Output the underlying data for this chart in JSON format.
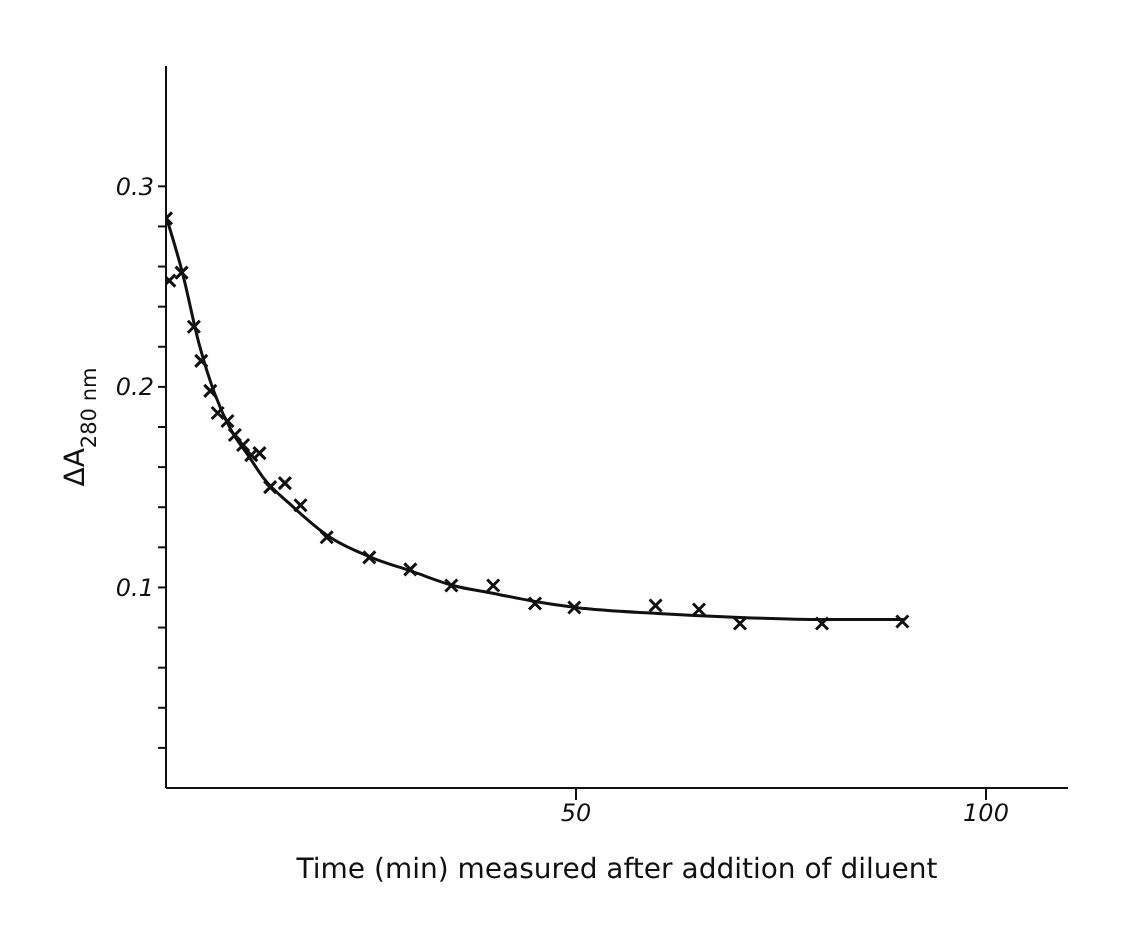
{
  "chart_data": {
    "type": "scatter",
    "xlabel": "Time (min) measured after addition of diluent",
    "ylabel": "ΔA$_{280 nm}$",
    "xlim": [
      0,
      110
    ],
    "ylim": [
      0,
      0.36
    ],
    "xticks": [
      50,
      100
    ],
    "yticks": [
      {
        "value": 0.02,
        "label": null
      },
      {
        "value": 0.04,
        "label": null
      },
      {
        "value": 0.06,
        "label": null
      },
      {
        "value": 0.08,
        "label": null
      },
      0.1,
      {
        "value": 0.12,
        "label": null
      },
      {
        "value": 0.14,
        "label": null
      },
      {
        "value": 0.16,
        "label": null
      },
      {
        "value": 0.18,
        "label": null
      },
      0.2,
      {
        "value": 0.22,
        "label": null
      },
      {
        "value": 0.24,
        "label": null
      },
      {
        "value": 0.26,
        "label": null
      },
      {
        "value": 0.28,
        "label": null
      },
      0.3
    ],
    "grid": false,
    "legend": false,
    "marker": "cross",
    "series": [
      {
        "color": "#111111",
        "x": [
          0,
          0.4,
          1.9,
          3.4,
          4.3,
          5.4,
          6.3,
          7.5,
          8.4,
          9.4,
          10.4,
          11.4,
          12.7,
          14.5,
          16.4,
          19.6,
          24.8,
          29.8,
          34.8,
          39.9,
          45,
          49.8,
          59.7,
          65,
          70,
          80,
          89.8
        ],
        "values": [
          0.284,
          0.253,
          0.257,
          0.23,
          0.213,
          0.198,
          0.187,
          0.183,
          0.176,
          0.171,
          0.166,
          0.167,
          0.15,
          0.152,
          0.141,
          0.125,
          0.115,
          0.109,
          0.101,
          0.101,
          0.092,
          0.09,
          0.091,
          0.089,
          0.082,
          0.082,
          0.083
        ]
      },
      {
        "type": "line",
        "color": "#111111",
        "marker": "none",
        "line_style": "solid",
        "x": [
          0,
          2,
          4,
          6,
          8,
          10,
          12,
          15,
          20,
          25,
          30,
          35,
          40,
          45,
          50,
          60,
          70,
          80,
          90
        ],
        "values": [
          0.285,
          0.257,
          0.222,
          0.196,
          0.178,
          0.166,
          0.154,
          0.142,
          0.125,
          0.115,
          0.108,
          0.101,
          0.097,
          0.093,
          0.09,
          0.087,
          0.085,
          0.084,
          0.084
        ]
      }
    ]
  }
}
